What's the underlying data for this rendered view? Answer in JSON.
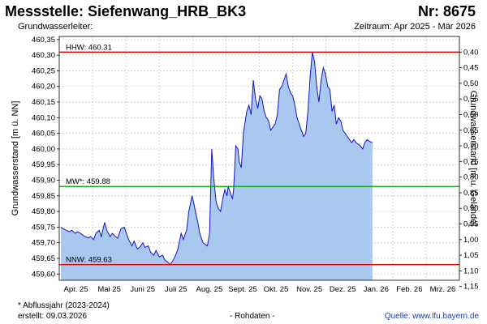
{
  "header": {
    "title": "Messstelle: Siefenwang_HRB_BK3",
    "nr": "Nr: 8675",
    "aquifer": "Grundwasserleiter:",
    "period": "Zeitraum: Apr 2025 - Mär 2026"
  },
  "footer": {
    "footnote": "* Abflussjahr (2023-2024)",
    "created": "erstellt:  09.03.2026",
    "rawdata": "- Rohdaten -",
    "source": "Quelle: www.lfu.bayern.de"
  },
  "colors": {
    "area_fill": "#a9c8ef",
    "line": "#1414c8",
    "max_line": "#e00000",
    "mean_line": "#009900",
    "min_line": "#e00000",
    "grid": "#cccccc"
  },
  "chart_data": {
    "type": "area",
    "ylabel": "Grundwasserstand [m ü. NN]",
    "y2label": "Grundwasserstand [m u. Gelände]",
    "ylim": [
      459.58,
      460.36
    ],
    "yticks": [
      "460,35",
      "460,30",
      "460,25",
      "460,20",
      "460,15",
      "460,10",
      "460,05",
      "460,00",
      "459,95",
      "459,90",
      "459,85",
      "459,80",
      "459,75",
      "459,70",
      "459,65",
      "459,60"
    ],
    "y2ticks": [
      "0,40",
      "0,45",
      "0,50",
      "0,55",
      "0,60",
      "0,65",
      "0,70",
      "0,75",
      "0,80",
      "0,85",
      "0,90",
      "0,95",
      "1,00",
      "1,05",
      "1,10",
      "1,15"
    ],
    "xticks": [
      "Apr. 25",
      "Mai 25",
      "Juni 25",
      "Juli 25",
      "Aug. 25",
      "Sept. 25",
      "Okt. 25",
      "Nov. 25",
      "Dez. 25",
      "Jan. 26",
      "Feb. 26",
      "Mrz. 26"
    ],
    "x": [
      0,
      2,
      5,
      8,
      10,
      13,
      15,
      18,
      20,
      22,
      25,
      27,
      30,
      32,
      35,
      37,
      40,
      42,
      45,
      47,
      50,
      52,
      55,
      58,
      60,
      62,
      65,
      67,
      70,
      72,
      75,
      77,
      80,
      82,
      85,
      87,
      90,
      93,
      95,
      97,
      100,
      102,
      105,
      107,
      110,
      112,
      115,
      117,
      120,
      122,
      123,
      125,
      127,
      130,
      132,
      134,
      136,
      138,
      140,
      142,
      144,
      146,
      148,
      150,
      152,
      153,
      155,
      157,
      158,
      160,
      162,
      163,
      165,
      167,
      170,
      172,
      174,
      176,
      178,
      180,
      182,
      184,
      186,
      188,
      190,
      192,
      194,
      196,
      198,
      200,
      202,
      204,
      206,
      208,
      210,
      212,
      214,
      216,
      218,
      220,
      222,
      224,
      226,
      228,
      230,
      232,
      234,
      236,
      238,
      240,
      242,
      244,
      246,
      248,
      250,
      252,
      254,
      256,
      258,
      260,
      262,
      264,
      266,
      268,
      270,
      272,
      274,
      276,
      278,
      280,
      282,
      285
    ],
    "values": [
      459.75,
      459.745,
      459.74,
      459.735,
      459.74,
      459.73,
      459.735,
      459.73,
      459.725,
      459.72,
      459.715,
      459.72,
      459.71,
      459.73,
      459.74,
      459.72,
      459.765,
      459.74,
      459.72,
      459.73,
      459.72,
      459.715,
      459.745,
      459.75,
      459.73,
      459.71,
      459.69,
      459.705,
      459.68,
      459.685,
      459.7,
      459.685,
      459.69,
      459.67,
      459.66,
      459.675,
      459.655,
      459.66,
      459.645,
      459.64,
      459.63,
      459.64,
      459.66,
      459.68,
      459.73,
      459.71,
      459.74,
      459.8,
      459.85,
      459.82,
      459.8,
      459.77,
      459.73,
      459.7,
      459.695,
      459.69,
      459.73,
      460.0,
      459.9,
      459.83,
      459.81,
      459.8,
      459.84,
      459.87,
      459.85,
      459.88,
      459.86,
      459.84,
      459.87,
      460.01,
      460.0,
      459.96,
      459.94,
      460.05,
      460.12,
      460.14,
      460.11,
      460.22,
      460.16,
      460.13,
      460.17,
      460.16,
      460.12,
      460.1,
      460.09,
      460.06,
      460.07,
      460.08,
      460.11,
      460.19,
      460.2,
      460.22,
      460.24,
      460.2,
      460.18,
      460.17,
      460.14,
      460.1,
      460.08,
      460.06,
      460.04,
      460.05,
      460.12,
      460.23,
      460.31,
      460.28,
      460.2,
      460.15,
      460.22,
      460.26,
      460.24,
      460.2,
      460.19,
      460.12,
      460.14,
      460.08,
      460.1,
      460.09,
      460.06,
      460.05,
      460.04,
      460.03,
      460.02,
      460.03,
      460.02,
      460.015,
      460.01,
      460.0,
      460.02,
      460.03,
      460.025,
      460.02
    ],
    "x_per_month": 24.5,
    "references": [
      {
        "key": "max",
        "label": "HHW: 460.31",
        "value": 460.31
      },
      {
        "key": "mean",
        "label": "MW*: 459.88",
        "value": 459.88
      },
      {
        "key": "min",
        "label": "NNW: 459.63",
        "value": 459.63
      }
    ],
    "grid": true
  }
}
